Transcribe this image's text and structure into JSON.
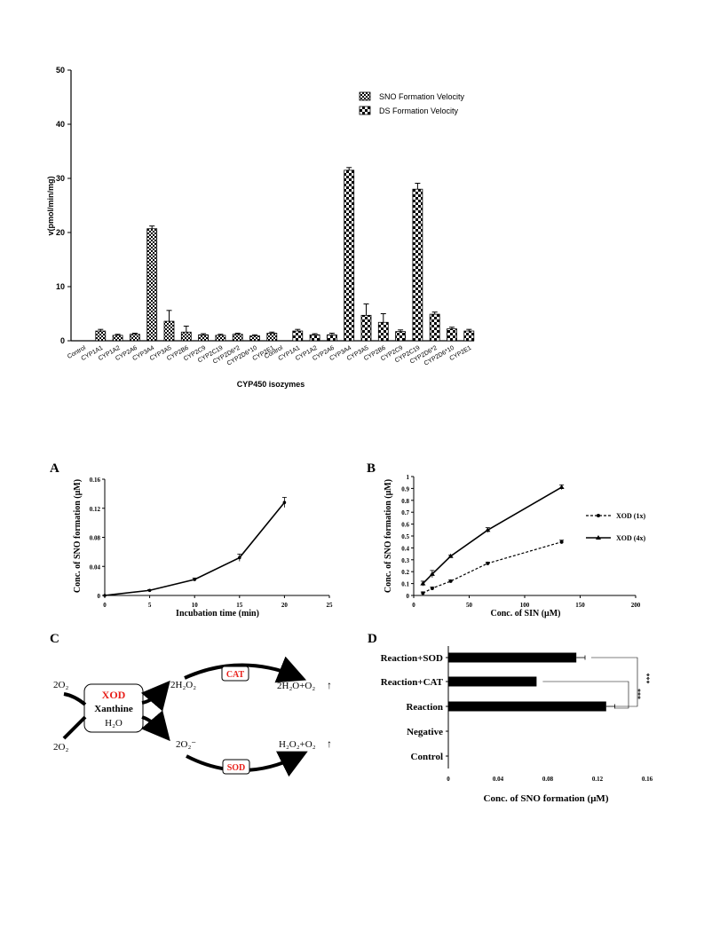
{
  "chart_data": [
    {
      "type": "bar",
      "ylabel": "v(pmol/min/mg)",
      "xlabel": "CYP450 isozymes",
      "ylim": [
        0,
        50
      ],
      "yticks": [
        0,
        10,
        20,
        30,
        40,
        50
      ],
      "legend_position": "top-right",
      "series": [
        {
          "name": "SNO Formation Velocity",
          "categories": [
            "Control",
            "CYP1A1",
            "CYP1A2",
            "CYP2A6",
            "CYP3A4",
            "CYP3A5",
            "CYP2B6",
            "CYP2C9",
            "CYP2C19",
            "CYP2D6*2",
            "CYP2D6*10",
            "CYP2E1"
          ],
          "values": [
            0,
            1.8,
            1.0,
            1.2,
            20.7,
            3.6,
            1.6,
            1.1,
            1.0,
            1.2,
            0.9,
            1.4
          ],
          "errors": [
            0,
            0.3,
            0.2,
            0.2,
            0.5,
            2.0,
            1.1,
            0.2,
            0.2,
            0.2,
            0.2,
            0.2
          ]
        },
        {
          "name": "DS Formation Velocity",
          "categories": [
            "Control",
            "CYP1A1",
            "CYP1A2",
            "CYP2A6",
            "CYP3A4",
            "CYP3A5",
            "CYP2B6",
            "CYP2C9",
            "CYP2C19",
            "CYP2D6*2",
            "CYP2D6*10",
            "CYP2E1"
          ],
          "values": [
            0,
            1.8,
            1.1,
            1.1,
            31.5,
            4.7,
            3.4,
            1.7,
            28.0,
            4.9,
            2.2,
            1.8
          ],
          "errors": [
            0,
            0.3,
            0.2,
            0.3,
            0.5,
            2.1,
            1.6,
            0.3,
            1.1,
            0.4,
            0.3,
            0.3
          ]
        }
      ]
    },
    {
      "type": "line",
      "panel": "A",
      "xlabel": "Incubation time (min)",
      "ylabel": "Conc. of SNO formation (μM)",
      "xlim": [
        0,
        25
      ],
      "ylim": [
        0,
        0.16
      ],
      "xticks": [
        0,
        5,
        10,
        15,
        20,
        25
      ],
      "yticks": [
        "0",
        "0.04",
        "0.08",
        "0.12",
        "0.16"
      ],
      "x": [
        0,
        5,
        10,
        15,
        20
      ],
      "y": [
        0,
        0.007,
        0.022,
        0.052,
        0.128
      ],
      "errors": [
        0,
        0.001,
        0.002,
        0.005,
        0.007
      ]
    },
    {
      "type": "line",
      "panel": "B",
      "xlabel": "Conc. of SIN (μM)",
      "ylabel": "Conc. of SNO formation (μM)",
      "xlim": [
        0,
        200
      ],
      "ylim": [
        0,
        1
      ],
      "xticks": [
        "0",
        "50",
        "100",
        "150",
        "200"
      ],
      "yticks": [
        "0",
        "0.1",
        "0.2",
        "0.3",
        "0.4",
        "0.5",
        "0.6",
        "0.7",
        "0.8",
        "0.9",
        "1"
      ],
      "legend_position": "right",
      "series": [
        {
          "name": "XOD (1x)",
          "style": "dashed",
          "x": [
            8.3,
            16.7,
            33.3,
            66.7,
            133.3
          ],
          "y": [
            0.02,
            0.06,
            0.12,
            0.27,
            0.45
          ],
          "errors": [
            0.01,
            0.01,
            0.01,
            0.01,
            0.015
          ]
        },
        {
          "name": "XOD (4x)",
          "style": "solid",
          "x": [
            8.3,
            16.7,
            33.3,
            66.7,
            133.3
          ],
          "y": [
            0.1,
            0.18,
            0.33,
            0.55,
            0.91
          ],
          "errors": [
            0.02,
            0.03,
            0.01,
            0.02,
            0.02
          ]
        }
      ]
    },
    {
      "type": "bar",
      "panel": "D",
      "orientation": "horizontal",
      "xlabel": "Conc. of SNO formation (μM)",
      "xlim": [
        0,
        0.16
      ],
      "xticks": [
        "0",
        "0.04",
        "0.08",
        "0.12",
        "0.16"
      ],
      "categories": [
        "Reaction+SOD",
        "Reaction+CAT",
        "Reaction",
        "Negative",
        "Control"
      ],
      "values": [
        0.103,
        0.071,
        0.127,
        0,
        0
      ],
      "errors": [
        0.007,
        0.0,
        0.007,
        0,
        0
      ],
      "significance": [
        "***",
        "***"
      ]
    }
  ],
  "diagram": {
    "panel": "C",
    "left_top": "2O₂",
    "left_bottom": "2O₂",
    "center_box": [
      "XOD",
      "Xanthine",
      "H₂O"
    ],
    "upper_product": "2H₂O₂",
    "lower_product": "2O₂⁻",
    "upper_enzyme": "CAT",
    "lower_enzyme": "SOD",
    "upper_result": "2H₂O+O₂",
    "lower_result": "H₂O₂+O₂",
    "arrow_glyph": "↑",
    "highlight_color": "#e8201a"
  },
  "panel_labels": [
    "A",
    "B",
    "C",
    "D"
  ]
}
